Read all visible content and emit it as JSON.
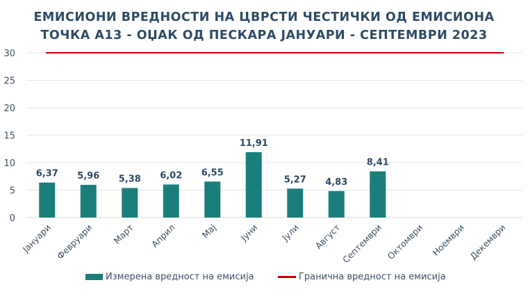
{
  "chart_data": {
    "type": "bar",
    "title_lines": [
      "ЕМИСИОНИ ВРЕДНОСТИ НА ЦВРСТИ ЧЕСТИЧКИ ОД ЕМИСИОНА",
      "ТОЧКА А13 - ОЏАК ОД ПЕСКАРА ЈАНУАРИ - СЕПТЕМВРИ 2023"
    ],
    "categories": [
      "Јануари",
      "Февруари",
      "Март",
      "Април",
      "Мај",
      "Јуни",
      "Јули",
      "Август",
      "Септември",
      "Октомври",
      "Ноември",
      "Декември"
    ],
    "series": [
      {
        "name": "Измерена вредност на емисија",
        "type": "bar",
        "values": [
          6.37,
          5.96,
          5.38,
          6.02,
          6.55,
          11.91,
          5.27,
          4.83,
          8.41,
          null,
          null,
          null
        ],
        "data_labels": [
          "6,37",
          "5,96",
          "5,38",
          "6,02",
          "6,55",
          "11,91",
          "5,27",
          "4,83",
          "8,41",
          "",
          "",
          ""
        ],
        "color": "#1a7f7a"
      },
      {
        "name": "Гранична вредност на емисија",
        "type": "line",
        "value": 30,
        "color": "#c00000"
      }
    ],
    "yticks": [
      "0",
      "5",
      "10",
      "15",
      "20",
      "25",
      "30"
    ],
    "ylim": [
      0,
      30
    ],
    "grid": true,
    "legend_position": "bottom",
    "colors": {
      "title": "#2e4a66",
      "grid": "#e6e6e6",
      "label": "#2e4a66"
    }
  }
}
